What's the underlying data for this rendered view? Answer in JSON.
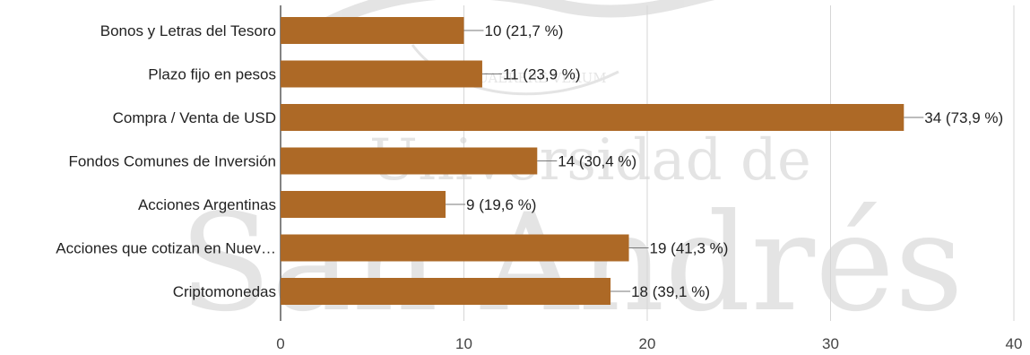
{
  "watermark": {
    "motto": "QUAERERE VERUM",
    "line1": "Universidad de",
    "line2": "San Andrés"
  },
  "chart_data": {
    "type": "bar",
    "orientation": "horizontal",
    "categories": [
      "Bonos y Letras del Tesoro",
      "Plazo fijo en pesos",
      "Compra / Venta de USD",
      "Fondos Comunes de Inversión",
      "Acciones Argentinas",
      "Acciones que cotizan en Nuev…",
      "Criptomonedas"
    ],
    "values": [
      10,
      11,
      34,
      14,
      9,
      19,
      18
    ],
    "data_labels": [
      "10 (21,7 %)",
      "11 (23,9 %)",
      "34 (73,9 %)",
      "14 (30,4 %)",
      "9 (19,6 %)",
      "19 (41,3 %)",
      "18 (39,1 %)"
    ],
    "xlim": [
      0,
      40
    ],
    "xticks": [
      0,
      10,
      20,
      30,
      40
    ],
    "grid": true,
    "bar_color": "#ad6926",
    "title": "",
    "xlabel": "",
    "ylabel": ""
  }
}
